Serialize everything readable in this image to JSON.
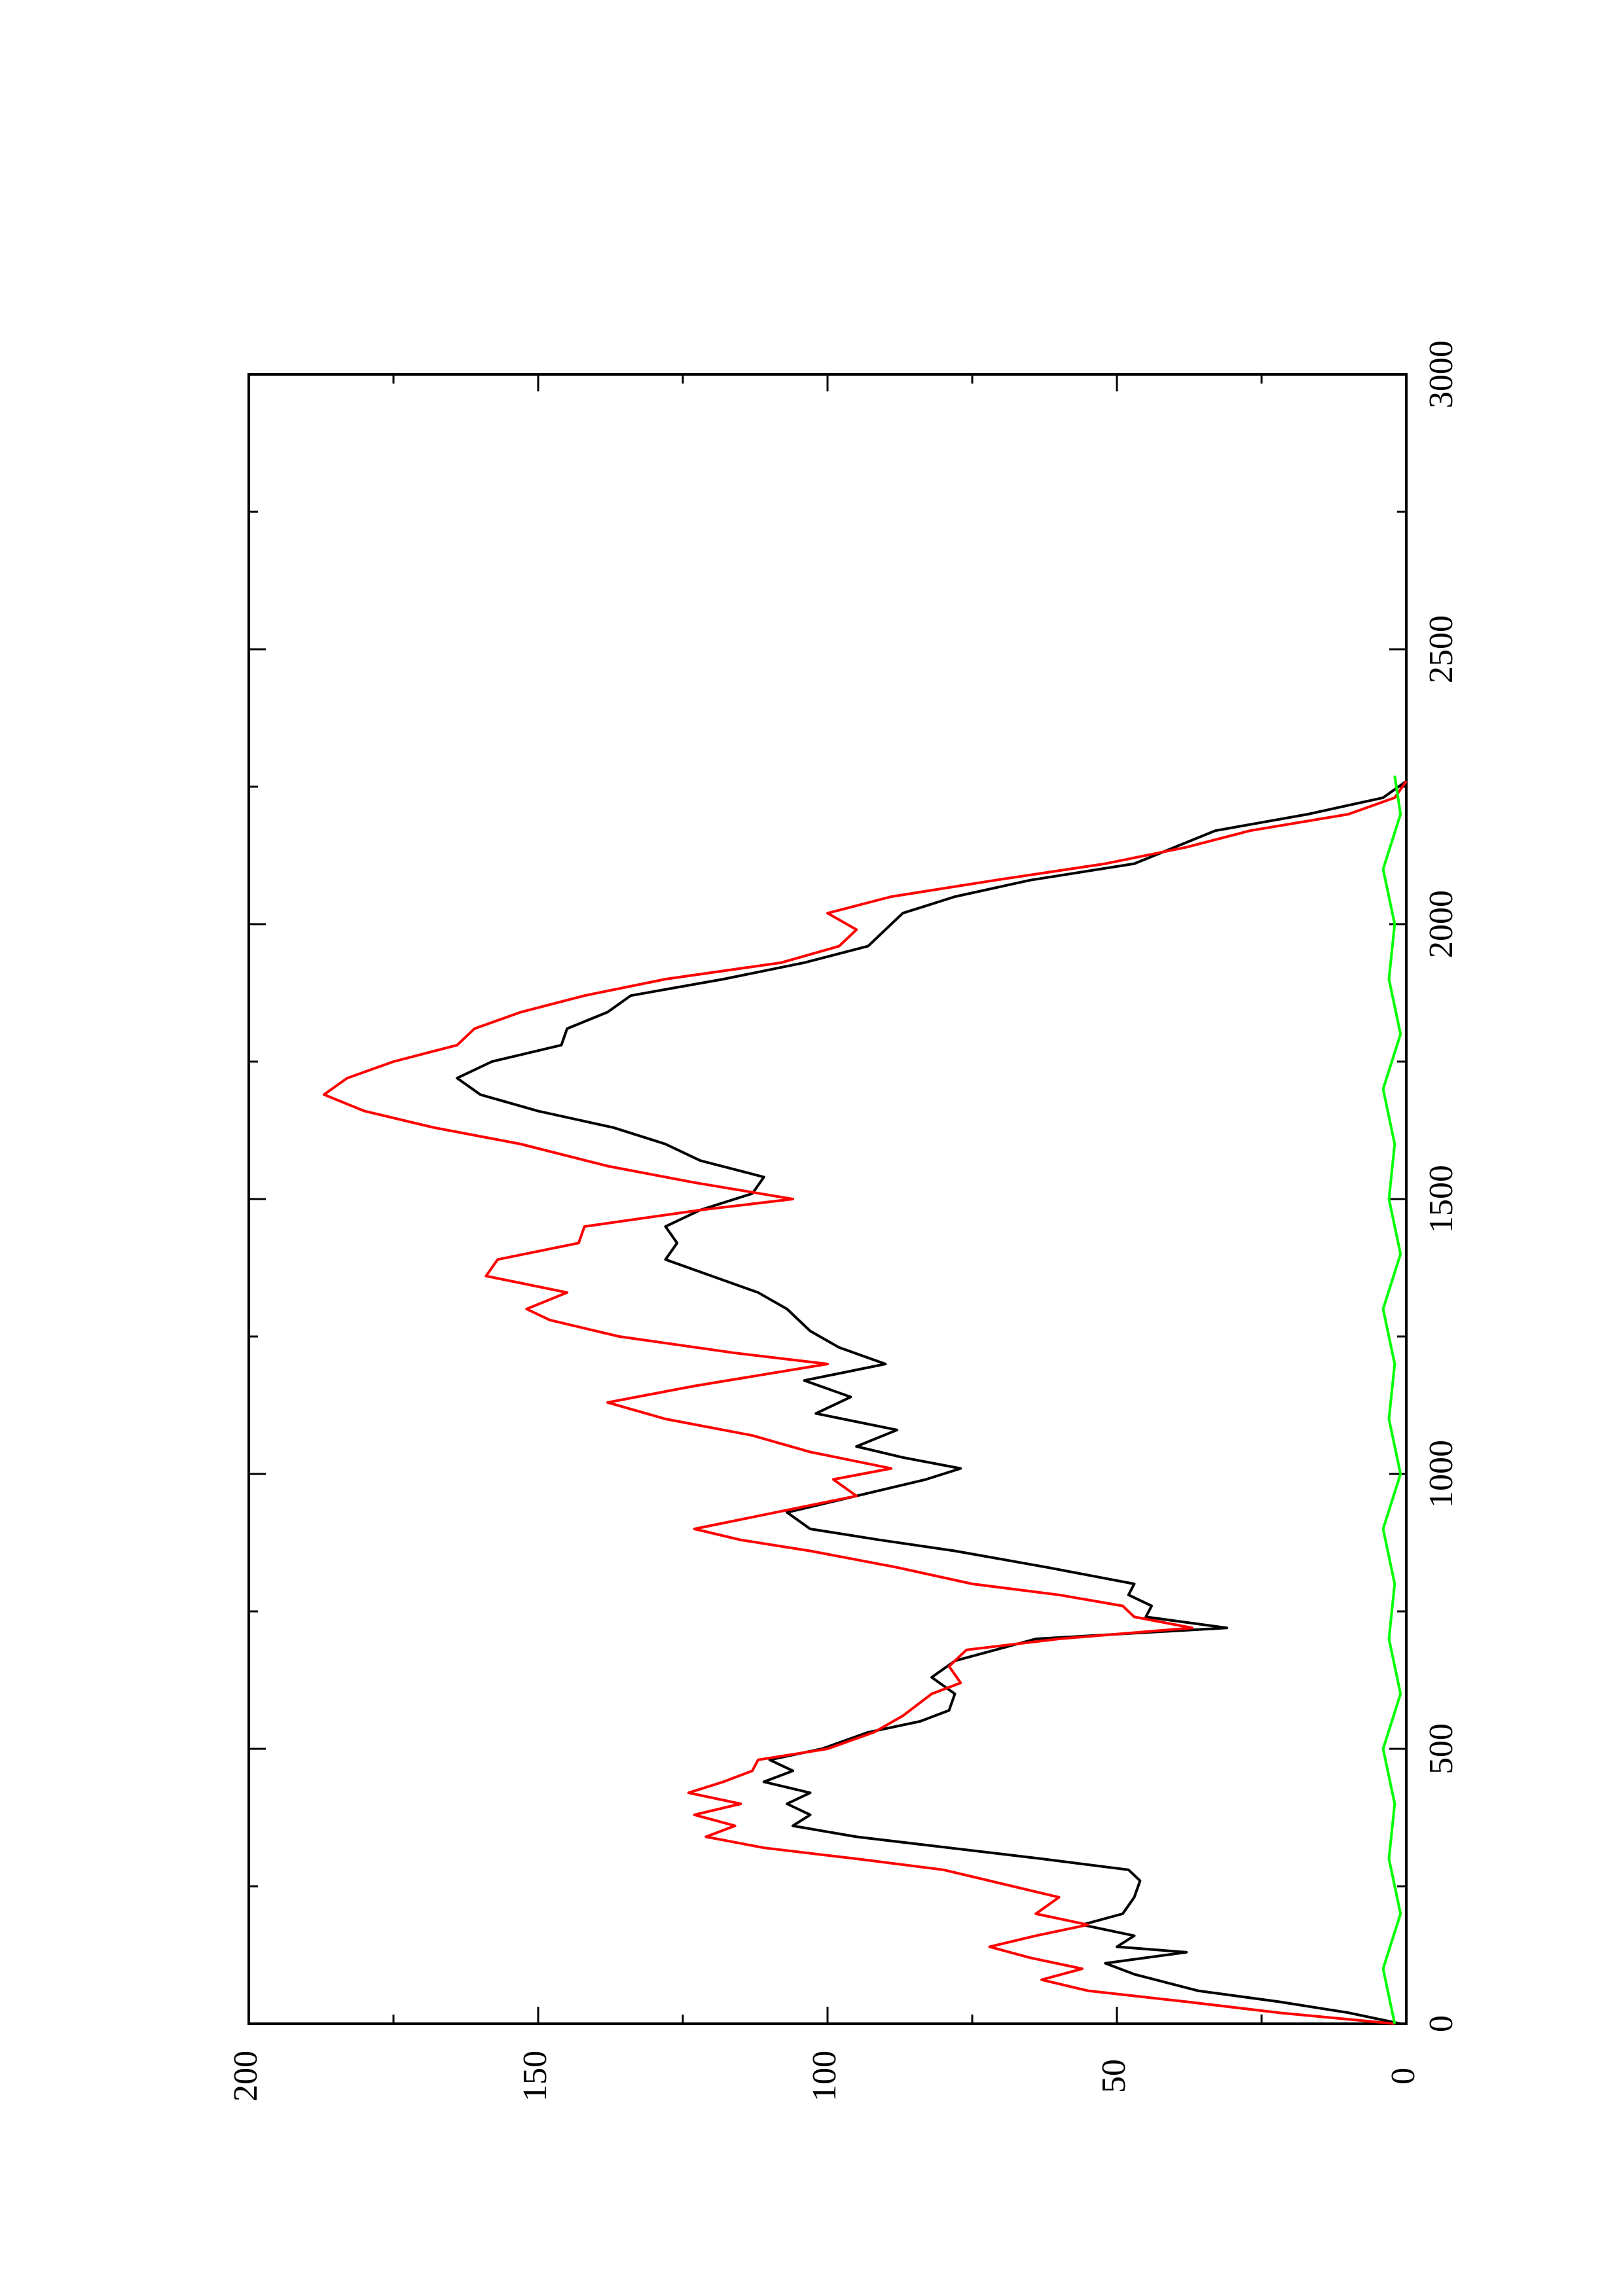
{
  "chart_data": {
    "type": "line",
    "title": "",
    "xlabel": "",
    "ylabel": "",
    "orientation": "rotated-90-ccw",
    "xlim": [
      0,
      3000
    ],
    "ylim": [
      0,
      200
    ],
    "x_ticks": [
      "0",
      "500",
      "1000",
      "1500",
      "2000",
      "2500",
      "3000"
    ],
    "y_ticks": [
      "0",
      "50",
      "100",
      "150",
      "200"
    ],
    "grid": false,
    "legend": "none",
    "series": [
      {
        "color": "#000000",
        "x": [
          0,
          20,
          40,
          60,
          90,
          110,
          130,
          140,
          160,
          180,
          200,
          230,
          260,
          280,
          300,
          320,
          340,
          360,
          380,
          400,
          420,
          440,
          460,
          480,
          500,
          530,
          550,
          570,
          600,
          630,
          660,
          700,
          720,
          740,
          760,
          780,
          800,
          830,
          860,
          880,
          900,
          930,
          960,
          990,
          1010,
          1030,
          1050,
          1080,
          1110,
          1140,
          1170,
          1200,
          1230,
          1260,
          1300,
          1330,
          1360,
          1390,
          1420,
          1450,
          1480,
          1510,
          1540,
          1570,
          1600,
          1630,
          1660,
          1690,
          1720,
          1750,
          1780,
          1810,
          1840,
          1870,
          1900,
          1930,
          1960,
          1990,
          2020,
          2050,
          2080,
          2110,
          2140,
          2170,
          2200,
          2230,
          2260
        ],
        "y": [
          1,
          10,
          22,
          36,
          47,
          52,
          38,
          50,
          47,
          56,
          49,
          47,
          46,
          48,
          63,
          79,
          95,
          106,
          103,
          107,
          103,
          111,
          106,
          110,
          101,
          93,
          84,
          79,
          78,
          82,
          78,
          64,
          31,
          45,
          44,
          48,
          47,
          62,
          78,
          91,
          103,
          107,
          95,
          83,
          77,
          87,
          95,
          88,
          102,
          96,
          104,
          90,
          98,
          103,
          107,
          112,
          120,
          128,
          126,
          128,
          122,
          113,
          111,
          122,
          128,
          137,
          150,
          160,
          164,
          158,
          146,
          145,
          138,
          134,
          118,
          104,
          93,
          90,
          87,
          78,
          65,
          47,
          40,
          33,
          17,
          4,
          0
        ]
      },
      {
        "color": "#ff0000",
        "x": [
          0,
          20,
          40,
          60,
          80,
          100,
          120,
          140,
          160,
          180,
          200,
          230,
          260,
          280,
          300,
          320,
          340,
          360,
          380,
          400,
          420,
          440,
          460,
          480,
          500,
          530,
          560,
          600,
          620,
          650,
          680,
          700,
          720,
          740,
          760,
          780,
          800,
          830,
          860,
          880,
          900,
          930,
          960,
          990,
          1010,
          1040,
          1070,
          1100,
          1130,
          1160,
          1200,
          1220,
          1250,
          1280,
          1300,
          1330,
          1360,
          1390,
          1420,
          1450,
          1480,
          1500,
          1530,
          1560,
          1600,
          1630,
          1660,
          1690,
          1720,
          1750,
          1780,
          1810,
          1840,
          1870,
          1900,
          1930,
          1960,
          1990,
          2020,
          2050,
          2080,
          2110,
          2140,
          2170,
          2200,
          2230,
          2260
        ],
        "y": [
          2,
          22,
          38,
          55,
          63,
          56,
          65,
          72,
          64,
          55,
          64,
          60,
          72,
          80,
          95,
          111,
          121,
          116,
          123,
          115,
          124,
          118,
          113,
          112,
          100,
          92,
          87,
          82,
          77,
          79,
          76,
          60,
          37,
          47,
          49,
          60,
          75,
          88,
          103,
          115,
          123,
          109,
          95,
          99,
          89,
          103,
          113,
          128,
          138,
          123,
          100,
          116,
          136,
          148,
          152,
          145,
          159,
          157,
          143,
          142,
          122,
          106,
          123,
          138,
          153,
          168,
          180,
          187,
          183,
          175,
          164,
          161,
          153,
          142,
          128,
          108,
          98,
          95,
          100,
          89,
          71,
          52,
          38,
          27,
          10,
          2,
          0
        ]
      },
      {
        "color": "#00ff00",
        "x": [
          0,
          100,
          200,
          300,
          400,
          500,
          600,
          700,
          800,
          900,
          1000,
          1100,
          1200,
          1300,
          1400,
          1500,
          1600,
          1700,
          1800,
          1900,
          2000,
          2100,
          2200,
          2270
        ],
        "y": [
          2,
          4,
          1,
          3,
          2,
          4,
          1,
          3,
          2,
          4,
          1,
          3,
          2,
          4,
          1,
          3,
          2,
          4,
          1,
          3,
          2,
          4,
          1,
          2
        ]
      }
    ]
  }
}
